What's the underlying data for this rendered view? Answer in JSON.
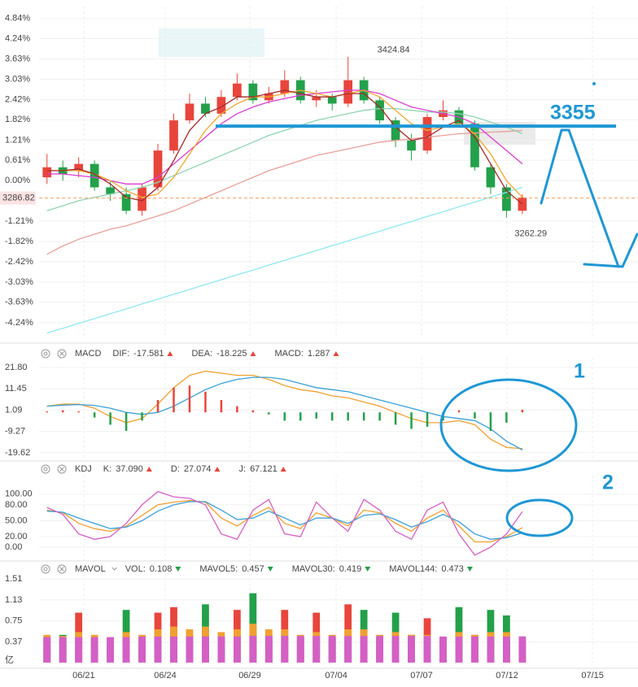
{
  "chart_data": [
    {
      "type": "candlestick",
      "ylim": [
        -4.68,
        5.2
      ],
      "yticks": [
        {
          "value": 4.84,
          "label": "4.84%"
        },
        {
          "value": 4.24,
          "label": "4.24%"
        },
        {
          "value": 3.63,
          "label": "3.63%"
        },
        {
          "value": 3.03,
          "label": "3.03%"
        },
        {
          "value": 2.42,
          "label": "2.42%"
        },
        {
          "value": 1.82,
          "label": "1.82%"
        },
        {
          "value": 1.21,
          "label": "1.21%"
        },
        {
          "value": 0.61,
          "label": "0.61%"
        },
        {
          "value": 0,
          "label": "0.00%"
        },
        {
          "value": -1.21,
          "label": "-1.21%"
        },
        {
          "value": -1.82,
          "label": "-1.82%"
        },
        {
          "value": -2.42,
          "label": "-2.42%"
        },
        {
          "value": -3.03,
          "label": "-3.03%"
        },
        {
          "value": -3.63,
          "label": "-3.63%"
        },
        {
          "value": -4.24,
          "label": "-4.24%"
        }
      ],
      "grid": true,
      "up_color": "#e8453c",
      "down_color": "#23a04a",
      "open": [
        0.1,
        0.4,
        0.3,
        0.5,
        -0.2,
        -0.4,
        -0.9,
        -0.2,
        0.9,
        1.8,
        2.3,
        2.0,
        2.5,
        2.9,
        2.4,
        2.6,
        3.0,
        2.4,
        2.5,
        2.3,
        3.0,
        2.4,
        1.8,
        1.2,
        0.9,
        1.9,
        2.1,
        1.7,
        0.4,
        -0.2,
        -0.9
      ],
      "high": [
        0.8,
        0.6,
        0.7,
        0.6,
        0.0,
        -0.2,
        -0.1,
        1.1,
        2.0,
        2.6,
        2.5,
        2.7,
        3.2,
        3.0,
        2.8,
        3.3,
        3.1,
        2.7,
        2.6,
        3.7,
        3.1,
        2.5,
        1.9,
        1.4,
        2.0,
        2.4,
        2.2,
        1.8,
        0.5,
        -0.1,
        -0.4
      ],
      "low": [
        -0.1,
        0.0,
        0.1,
        -0.3,
        -0.6,
        -1.0,
        -1.05,
        -0.3,
        0.8,
        1.7,
        1.9,
        1.9,
        2.4,
        2.3,
        2.3,
        2.5,
        2.3,
        2.2,
        2.1,
        2.2,
        2.3,
        1.7,
        1.0,
        0.6,
        0.8,
        1.8,
        1.6,
        0.3,
        -0.4,
        -1.1,
        -1.0
      ],
      "close": [
        0.4,
        0.2,
        0.5,
        -0.2,
        -0.4,
        -0.9,
        -0.2,
        0.9,
        1.8,
        2.3,
        2.0,
        2.5,
        2.9,
        2.4,
        2.6,
        3.0,
        2.4,
        2.5,
        2.3,
        3.0,
        2.4,
        1.8,
        1.2,
        0.9,
        1.9,
        2.1,
        1.7,
        0.4,
        -0.2,
        -0.9,
        -0.5
      ],
      "high_label": "3424.84",
      "low_label": "3262.29",
      "last_price": {
        "value": -0.52,
        "label": "3286.82"
      },
      "level": {
        "value": 1.63,
        "label": "3355"
      },
      "series": [
        {
          "color": "#8fe8f0",
          "values": [
            -4.55,
            -4.41,
            -4.26,
            -4.12,
            -3.97,
            -3.83,
            -3.68,
            -3.54,
            -3.39,
            -3.25,
            -3.1,
            -2.96,
            -2.81,
            -2.67,
            -2.52,
            -2.38,
            -2.23,
            -2.09,
            -1.94,
            -1.8,
            -1.65,
            -1.51,
            -1.36,
            -1.22,
            -1.07,
            -0.93,
            -0.78,
            -0.64,
            -0.49,
            -0.35,
            -0.2
          ]
        },
        {
          "color": "#e8a09a",
          "values": [
            -2.2,
            -1.95,
            -1.75,
            -1.6,
            -1.45,
            -1.35,
            -1.2,
            -1.05,
            -0.9,
            -0.7,
            -0.5,
            -0.3,
            -0.1,
            0.1,
            0.3,
            0.45,
            0.6,
            0.75,
            0.85,
            0.95,
            1.05,
            1.15,
            1.2,
            1.25,
            1.3,
            1.35,
            1.4,
            1.42,
            1.45,
            1.47,
            1.5
          ]
        },
        {
          "color": "#8fd4b0",
          "values": [
            -0.9,
            -0.75,
            -0.6,
            -0.5,
            -0.4,
            -0.3,
            -0.2,
            -0.05,
            0.15,
            0.35,
            0.55,
            0.75,
            0.95,
            1.15,
            1.35,
            1.5,
            1.65,
            1.8,
            1.9,
            2.0,
            2.1,
            2.15,
            2.15,
            2.1,
            2.05,
            2.05,
            2.0,
            1.9,
            1.75,
            1.6,
            1.4
          ]
        },
        {
          "color": "#d83ed0",
          "values": [
            0.2,
            0.2,
            0.15,
            0.1,
            0.0,
            -0.1,
            -0.1,
            0.1,
            0.5,
            0.9,
            1.3,
            1.7,
            2.0,
            2.2,
            2.35,
            2.45,
            2.55,
            2.6,
            2.65,
            2.7,
            2.7,
            2.6,
            2.4,
            2.2,
            2.1,
            2.0,
            1.9,
            1.7,
            1.3,
            0.9,
            0.5
          ]
        },
        {
          "color": "#f0a830",
          "values": [
            0.3,
            0.3,
            0.3,
            0.2,
            0.0,
            -0.3,
            -0.5,
            -0.4,
            0.1,
            0.8,
            1.5,
            2.0,
            2.3,
            2.5,
            2.5,
            2.6,
            2.7,
            2.6,
            2.5,
            2.6,
            2.7,
            2.5,
            2.1,
            1.7,
            1.5,
            1.6,
            1.7,
            1.4,
            0.8,
            0.0,
            -0.5
          ]
        },
        {
          "color": "#a52a2a",
          "values": [
            0.3,
            0.3,
            0.35,
            0.2,
            -0.1,
            -0.5,
            -0.6,
            -0.2,
            0.6,
            1.5,
            2.0,
            2.2,
            2.5,
            2.5,
            2.6,
            2.7,
            2.6,
            2.5,
            2.5,
            2.6,
            2.6,
            2.2,
            1.6,
            1.2,
            1.3,
            1.6,
            1.8,
            1.3,
            0.5,
            -0.3,
            -0.7
          ]
        }
      ]
    },
    {
      "type": "line",
      "title": "MACD",
      "ylim": [
        -22.8,
        26.5
      ],
      "yticks": [
        {
          "value": 21.8,
          "label": "21.80"
        },
        11.45,
        1.09,
        -9.27,
        -19.62
      ],
      "grid": true,
      "up_color": "#e8453c",
      "down_color": "#23a04a",
      "annotation": "1",
      "series": [
        {
          "name": "DIF:",
          "color": "#f0a030",
          "arrow": "up",
          "values": [
            3,
            4,
            4,
            2,
            -2,
            -5,
            -3,
            4,
            12,
            18,
            20,
            19,
            18,
            18,
            16,
            13,
            11,
            10,
            8,
            7,
            5,
            3,
            0,
            -3,
            -5,
            -5,
            -4,
            -6,
            -13,
            -17,
            -17.581
          ]
        },
        {
          "name": "DEA:",
          "color": "#3aa0d8",
          "arrow": "up",
          "values": [
            3,
            3.5,
            3.8,
            3.4,
            2,
            0,
            -1,
            0,
            3,
            7,
            11,
            14,
            16,
            17,
            17,
            16,
            14,
            12,
            11,
            10,
            8,
            6,
            4,
            2,
            0,
            -2,
            -3,
            -4,
            -8,
            -14,
            -18.225
          ]
        },
        {
          "name": "MACD:",
          "type": "bar",
          "color": "#d55fc5",
          "arrow": "up",
          "values": [
            0.5,
            1,
            0.5,
            -2.5,
            -6,
            -9,
            -4,
            6,
            12,
            13,
            10,
            6,
            3,
            1,
            -1,
            -4,
            -4,
            -3,
            -4,
            -4,
            -4,
            -4,
            -6,
            -8,
            -7,
            -4,
            1,
            -3,
            -9,
            -5,
            1.287
          ]
        }
      ]
    },
    {
      "type": "line",
      "title": "KDJ",
      "ylim": [
        -26,
        135
      ],
      "yticks": [
        {
          "value": 100,
          "label": "100.00"
        },
        {
          "value": 80,
          "label": "80.00"
        },
        {
          "value": 50,
          "label": "50.00"
        },
        {
          "value": 20,
          "label": "20.00"
        },
        {
          "value": 0,
          "label": "0.00"
        }
      ],
      "grid": true,
      "annotation": "2",
      "series": [
        {
          "name": "K:",
          "color": "#f0a030",
          "arrow": "up",
          "values": [
            70,
            65,
            45,
            35,
            30,
            40,
            60,
            80,
            85,
            88,
            85,
            55,
            40,
            60,
            75,
            45,
            35,
            65,
            55,
            40,
            70,
            65,
            45,
            30,
            55,
            70,
            40,
            10,
            10,
            20,
            37.09
          ],
          "value_labels": [
            null,
            null,
            null,
            null,
            null,
            null,
            null,
            null,
            null,
            null,
            null,
            null,
            null,
            null,
            null,
            null,
            null,
            null,
            null,
            null,
            null,
            null,
            null,
            null,
            null,
            null,
            null,
            null,
            null,
            null,
            "37.090"
          ]
        },
        {
          "name": "D:",
          "color": "#3aa0d8",
          "arrow": "up",
          "values": [
            68,
            66,
            55,
            45,
            35,
            38,
            50,
            68,
            80,
            86,
            86,
            70,
            52,
            55,
            68,
            55,
            42,
            55,
            55,
            45,
            60,
            63,
            52,
            38,
            48,
            62,
            48,
            25,
            15,
            18,
            27.074
          ]
        },
        {
          "name": "J:",
          "color": "#d55fc5",
          "arrow": "up",
          "values": [
            75,
            62,
            25,
            15,
            20,
            45,
            80,
            105,
            95,
            92,
            80,
            25,
            15,
            70,
            90,
            25,
            20,
            85,
            55,
            30,
            90,
            70,
            30,
            15,
            70,
            85,
            25,
            -15,
            0,
            25,
            67.121
          ]
        }
      ]
    },
    {
      "type": "bar",
      "title": "MAVOL",
      "ylim": [
        0,
        1.685
      ],
      "yticks": [
        1.51,
        1.13,
        0.75,
        0.37
      ],
      "unit": "亿",
      "grid": true,
      "xlim": [
        -0.5,
        37.3
      ],
      "xticks": [
        {
          "value": 2.32,
          "label": "06/21"
        },
        {
          "value": 7.46,
          "label": "06/24"
        },
        {
          "value": 12.8,
          "label": "06/29"
        },
        {
          "value": 18.25,
          "label": "07/04"
        },
        {
          "value": 23.64,
          "label": "07/07"
        },
        {
          "value": 29.03,
          "label": "07/12"
        },
        {
          "value": 34.43,
          "label": "07/15"
        }
      ],
      "series": [
        {
          "name": "VOL:",
          "type": "bar",
          "color": "#e86a6a",
          "arrow": "down",
          "values": [
            0.45,
            0.5,
            0.9,
            0.4,
            0.35,
            0.95,
            0.4,
            0.9,
            1.0,
            0.5,
            1.05,
            0.45,
            0.95,
            1.25,
            0.5,
            0.95,
            0.45,
            0.9,
            0.45,
            1.05,
            0.95,
            0.4,
            0.9,
            0.5,
            0.8,
            0.45,
            1.0,
            0.5,
            0.95,
            0.85,
            0.108
          ],
          "colors": [
            "#e8453c",
            "#23a04a",
            "#e8453c",
            "#23a04a",
            "#23a04a",
            "#23a04a",
            "#e8453c",
            "#e8453c",
            "#e8453c",
            "#e8453c",
            "#23a04a",
            "#e8453c",
            "#e8453c",
            "#23a04a",
            "#e8453c",
            "#e8453c",
            "#23a04a",
            "#e8453c",
            "#23a04a",
            "#e8453c",
            "#23a04a",
            "#23a04a",
            "#23a04a",
            "#23a04a",
            "#e8453c",
            "#e8453c",
            "#23a04a",
            "#23a04a",
            "#23a04a",
            "#23a04a",
            "#e8453c"
          ]
        },
        {
          "name": "MAVOL5:",
          "color": "#f0a030",
          "arrow": "down",
          "values": [
            0.5,
            0.48,
            0.55,
            0.5,
            0.45,
            0.55,
            0.5,
            0.6,
            0.65,
            0.6,
            0.65,
            0.55,
            0.6,
            0.7,
            0.6,
            0.6,
            0.5,
            0.55,
            0.5,
            0.6,
            0.6,
            0.5,
            0.55,
            0.5,
            0.5,
            0.45,
            0.55,
            0.5,
            0.55,
            0.55,
            0.457
          ]
        },
        {
          "name": "MAVOL30:",
          "color": "#3aa0d8",
          "arrow": "down",
          "values": [
            0.43,
            0.43,
            0.44,
            0.44,
            0.43,
            0.44,
            0.44,
            0.45,
            0.46,
            0.46,
            0.47,
            0.47,
            0.47,
            0.48,
            0.48,
            0.48,
            0.47,
            0.47,
            0.46,
            0.46,
            0.46,
            0.45,
            0.45,
            0.44,
            0.44,
            0.43,
            0.43,
            0.43,
            0.42,
            0.42,
            0.419
          ]
        },
        {
          "name": "MAVOL144:",
          "color": "#d55fc5",
          "arrow": "down",
          "values": [
            0.46,
            0.46,
            0.46,
            0.46,
            0.46,
            0.46,
            0.47,
            0.47,
            0.47,
            0.47,
            0.47,
            0.47,
            0.47,
            0.48,
            0.48,
            0.48,
            0.48,
            0.48,
            0.48,
            0.48,
            0.48,
            0.48,
            0.48,
            0.48,
            0.48,
            0.47,
            0.47,
            0.47,
            0.47,
            0.47,
            0.473
          ]
        }
      ]
    }
  ]
}
